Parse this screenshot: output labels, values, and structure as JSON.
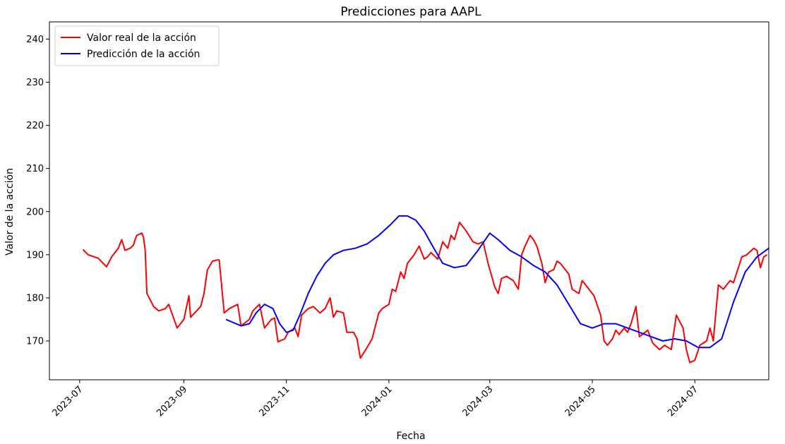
{
  "chart_data": {
    "type": "line",
    "title": "Predicciones para AAPL",
    "xlabel": "Fecha",
    "ylabel": "Valor de la acción",
    "ylim": [
      161,
      244
    ],
    "xlim": [
      "2023-06-13",
      "2024-08-14"
    ],
    "grid": false,
    "legend_position": "top-left",
    "x_ticks": [
      "2023-07",
      "2023-09",
      "2023-11",
      "2024-01",
      "2024-03",
      "2024-05",
      "2024-07"
    ],
    "y_ticks": [
      170,
      180,
      190,
      200,
      210,
      220,
      230,
      240
    ],
    "series": [
      {
        "name": "Valor real de la acción",
        "color": "#ff0000",
        "points": [
          [
            "2023-07-03",
            191.2
          ],
          [
            "2023-07-06",
            190.0
          ],
          [
            "2023-07-12",
            189.2
          ],
          [
            "2023-07-17",
            187.2
          ],
          [
            "2023-07-20",
            189.5
          ],
          [
            "2023-07-24",
            191.5
          ],
          [
            "2023-07-26",
            193.5
          ],
          [
            "2023-07-28",
            191.0
          ],
          [
            "2023-07-31",
            191.5
          ],
          [
            "2023-08-02",
            192.2
          ],
          [
            "2023-08-03",
            193.5
          ],
          [
            "2023-08-04",
            194.5
          ],
          [
            "2023-08-07",
            195.0
          ],
          [
            "2023-08-08",
            194.0
          ],
          [
            "2023-08-09",
            191.0
          ],
          [
            "2023-08-10",
            181.0
          ],
          [
            "2023-08-14",
            178.0
          ],
          [
            "2023-08-17",
            177.0
          ],
          [
            "2023-08-21",
            177.5
          ],
          [
            "2023-08-23",
            178.5
          ],
          [
            "2023-08-28",
            173.0
          ],
          [
            "2023-09-01",
            175.0
          ],
          [
            "2023-09-04",
            180.5
          ],
          [
            "2023-09-05",
            175.5
          ],
          [
            "2023-09-11",
            178.0
          ],
          [
            "2023-09-13",
            181.0
          ],
          [
            "2023-09-15",
            186.5
          ],
          [
            "2023-09-18",
            188.5
          ],
          [
            "2023-09-21",
            188.8
          ],
          [
            "2023-09-22",
            188.8
          ],
          [
            "2023-09-25",
            176.5
          ],
          [
            "2023-09-28",
            177.5
          ],
          [
            "2023-10-03",
            178.5
          ],
          [
            "2023-10-05",
            173.5
          ],
          [
            "2023-10-10",
            175.0
          ],
          [
            "2023-10-12",
            177.0
          ],
          [
            "2023-10-16",
            178.5
          ],
          [
            "2023-10-19",
            173.0
          ],
          [
            "2023-10-23",
            175.0
          ],
          [
            "2023-10-25",
            175.3
          ],
          [
            "2023-10-27",
            169.8
          ],
          [
            "2023-10-31",
            170.5
          ],
          [
            "2023-11-02",
            172.0
          ],
          [
            "2023-11-06",
            173.0
          ],
          [
            "2023-11-08",
            171.0
          ],
          [
            "2023-11-10",
            176.0
          ],
          [
            "2023-11-14",
            177.5
          ],
          [
            "2023-11-17",
            178.0
          ],
          [
            "2023-11-21",
            176.5
          ],
          [
            "2023-11-24",
            177.5
          ],
          [
            "2023-11-27",
            180.0
          ],
          [
            "2023-11-29",
            175.5
          ],
          [
            "2023-12-01",
            177.0
          ],
          [
            "2023-12-05",
            176.5
          ],
          [
            "2023-12-07",
            172.0
          ],
          [
            "2023-12-11",
            172.0
          ],
          [
            "2023-12-13",
            170.5
          ],
          [
            "2023-12-15",
            166.0
          ],
          [
            "2023-12-19",
            168.5
          ],
          [
            "2023-12-22",
            170.5
          ],
          [
            "2023-12-26",
            176.5
          ],
          [
            "2023-12-28",
            177.5
          ],
          [
            "2024-01-01",
            178.5
          ],
          [
            "2024-01-03",
            182.0
          ],
          [
            "2024-01-05",
            181.5
          ],
          [
            "2024-01-08",
            186.0
          ],
          [
            "2024-01-10",
            184.5
          ],
          [
            "2024-01-12",
            188.0
          ],
          [
            "2024-01-16",
            190.0
          ],
          [
            "2024-01-19",
            192.0
          ],
          [
            "2024-01-22",
            189.0
          ],
          [
            "2024-01-24",
            189.5
          ],
          [
            "2024-01-26",
            190.5
          ],
          [
            "2024-01-30",
            189.0
          ],
          [
            "2024-02-02",
            193.0
          ],
          [
            "2024-02-05",
            191.5
          ],
          [
            "2024-02-07",
            194.5
          ],
          [
            "2024-02-09",
            193.5
          ],
          [
            "2024-02-12",
            197.5
          ],
          [
            "2024-02-14",
            196.5
          ],
          [
            "2024-02-16",
            195.5
          ],
          [
            "2024-02-20",
            193.0
          ],
          [
            "2024-02-23",
            192.5
          ],
          [
            "2024-02-26",
            193.0
          ],
          [
            "2024-02-29",
            188.0
          ],
          [
            "2024-03-04",
            182.5
          ],
          [
            "2024-03-06",
            181.0
          ],
          [
            "2024-03-08",
            184.5
          ],
          [
            "2024-03-11",
            185.0
          ],
          [
            "2024-03-13",
            184.5
          ],
          [
            "2024-03-15",
            184.0
          ],
          [
            "2024-03-18",
            182.0
          ],
          [
            "2024-03-20",
            190.0
          ],
          [
            "2024-03-22",
            192.0
          ],
          [
            "2024-03-25",
            194.5
          ],
          [
            "2024-03-27",
            193.5
          ],
          [
            "2024-03-29",
            192.0
          ],
          [
            "2024-04-01",
            188.0
          ],
          [
            "2024-04-03",
            183.5
          ],
          [
            "2024-04-05",
            186.0
          ],
          [
            "2024-04-08",
            186.5
          ],
          [
            "2024-04-10",
            188.5
          ],
          [
            "2024-04-12",
            188.0
          ],
          [
            "2024-04-15",
            186.5
          ],
          [
            "2024-04-17",
            185.5
          ],
          [
            "2024-04-19",
            182.0
          ],
          [
            "2024-04-23",
            181.0
          ],
          [
            "2024-04-25",
            184.0
          ],
          [
            "2024-04-29",
            182.0
          ],
          [
            "2024-05-02",
            180.5
          ],
          [
            "2024-05-06",
            176.0
          ],
          [
            "2024-05-08",
            170.0
          ],
          [
            "2024-05-10",
            169.0
          ],
          [
            "2024-05-13",
            170.5
          ],
          [
            "2024-05-15",
            172.5
          ],
          [
            "2024-05-17",
            171.5
          ],
          [
            "2024-05-20",
            173.0
          ],
          [
            "2024-05-22",
            172.0
          ],
          [
            "2024-05-24",
            174.0
          ],
          [
            "2024-05-27",
            178.0
          ],
          [
            "2024-05-29",
            171.0
          ],
          [
            "2024-06-03",
            172.5
          ],
          [
            "2024-06-06",
            169.5
          ],
          [
            "2024-06-10",
            168.0
          ],
          [
            "2024-06-13",
            169.0
          ],
          [
            "2024-06-17",
            168.0
          ],
          [
            "2024-06-20",
            176.0
          ],
          [
            "2024-06-24",
            173.0
          ],
          [
            "2024-06-26",
            168.0
          ],
          [
            "2024-06-28",
            165.0
          ],
          [
            "2024-07-01",
            165.5
          ],
          [
            "2024-07-04",
            169.0
          ],
          [
            "2024-07-08",
            170.0
          ],
          [
            "2024-07-10",
            173.0
          ],
          [
            "2024-07-12",
            170.0
          ],
          [
            "2024-07-15",
            183.0
          ],
          [
            "2024-07-18",
            182.0
          ],
          [
            "2024-07-22",
            184.0
          ],
          [
            "2024-07-24",
            183.5
          ],
          [
            "2024-07-29",
            189.5
          ],
          [
            "2024-08-01",
            190.0
          ],
          [
            "2024-08-05",
            191.5
          ],
          [
            "2024-08-07",
            191.0
          ],
          [
            "2024-08-09",
            187.0
          ],
          [
            "2024-08-11",
            189.5
          ],
          [
            "2024-08-13",
            190.0
          ]
        ]
      },
      {
        "name": "Predicción de la acción",
        "color": "#0000ff",
        "points": [
          [
            "2023-09-26",
            175.0
          ],
          [
            "2023-10-05",
            173.5
          ],
          [
            "2023-10-10",
            174.0
          ],
          [
            "2023-10-14",
            176.5
          ],
          [
            "2023-10-19",
            178.5
          ],
          [
            "2023-10-24",
            177.5
          ],
          [
            "2023-10-28",
            174.0
          ],
          [
            "2023-11-01",
            172.0
          ],
          [
            "2023-11-05",
            172.5
          ],
          [
            "2023-11-09",
            176.0
          ],
          [
            "2023-11-14",
            181.0
          ],
          [
            "2023-11-19",
            185.0
          ],
          [
            "2023-11-24",
            188.0
          ],
          [
            "2023-11-29",
            190.0
          ],
          [
            "2023-12-05",
            191.0
          ],
          [
            "2023-12-12",
            191.5
          ],
          [
            "2023-12-19",
            192.5
          ],
          [
            "2023-12-26",
            194.5
          ],
          [
            "2024-01-02",
            197.0
          ],
          [
            "2024-01-07",
            199.0
          ],
          [
            "2024-01-12",
            199.0
          ],
          [
            "2024-01-17",
            198.0
          ],
          [
            "2024-01-22",
            195.5
          ],
          [
            "2024-01-27",
            192.0
          ],
          [
            "2024-02-02",
            188.0
          ],
          [
            "2024-02-09",
            187.0
          ],
          [
            "2024-02-16",
            187.5
          ],
          [
            "2024-02-23",
            191.0
          ],
          [
            "2024-03-01",
            195.0
          ],
          [
            "2024-03-06",
            193.5
          ],
          [
            "2024-03-13",
            191.0
          ],
          [
            "2024-03-20",
            189.5
          ],
          [
            "2024-03-27",
            187.5
          ],
          [
            "2024-04-03",
            186.0
          ],
          [
            "2024-04-10",
            183.0
          ],
          [
            "2024-04-17",
            178.5
          ],
          [
            "2024-04-24",
            174.0
          ],
          [
            "2024-05-01",
            173.0
          ],
          [
            "2024-05-08",
            174.0
          ],
          [
            "2024-05-15",
            174.0
          ],
          [
            "2024-05-22",
            173.0
          ],
          [
            "2024-05-29",
            172.0
          ],
          [
            "2024-06-05",
            171.0
          ],
          [
            "2024-06-12",
            170.0
          ],
          [
            "2024-06-19",
            170.5
          ],
          [
            "2024-06-26",
            170.0
          ],
          [
            "2024-07-03",
            168.5
          ],
          [
            "2024-07-10",
            168.5
          ],
          [
            "2024-07-17",
            170.5
          ],
          [
            "2024-07-24",
            179.0
          ],
          [
            "2024-07-31",
            186.0
          ],
          [
            "2024-08-07",
            189.5
          ],
          [
            "2024-08-14",
            191.5
          ]
        ]
      }
    ]
  }
}
